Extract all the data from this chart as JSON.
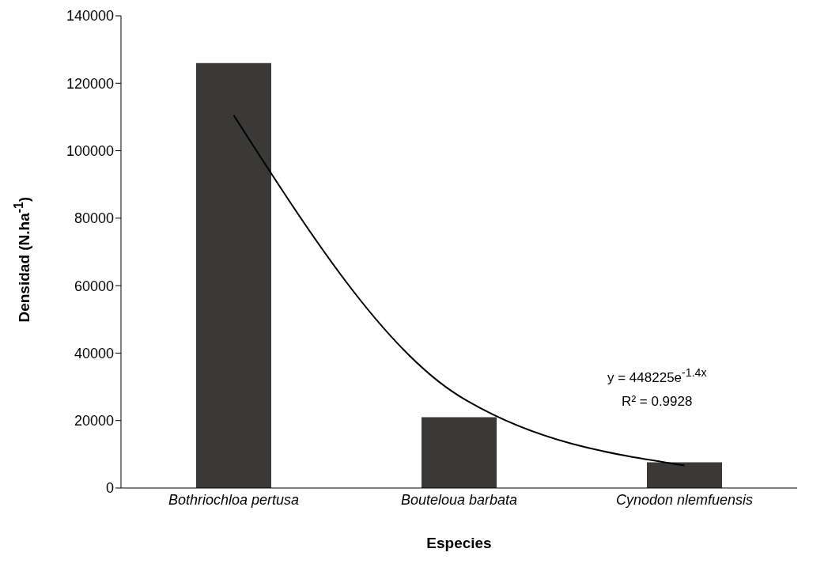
{
  "chart_data": {
    "type": "bar",
    "xlabel": "Especies",
    "ylabel": "Densidad (N.ha$^{-1}$)",
    "categories": [
      "Bothriochloa pertusa",
      "Bouteloua barbata",
      "Cynodon nlemfuensis"
    ],
    "series": [
      {
        "color": "#3a3938",
        "values": [
          126000,
          21000,
          7600
        ]
      },
      {
        "type": "line",
        "color": "#000000",
        "values": [
          110500,
          27300,
          6700
        ]
      }
    ],
    "ylim": [
      0,
      140000
    ],
    "yticks": [
      0,
      20000,
      40000,
      60000,
      80000,
      100000,
      120000,
      140000
    ],
    "grid": false,
    "legend": false,
    "annotations": [
      "y = 448225e$^{-1.4x}$",
      "R² = 0.9928"
    ]
  }
}
